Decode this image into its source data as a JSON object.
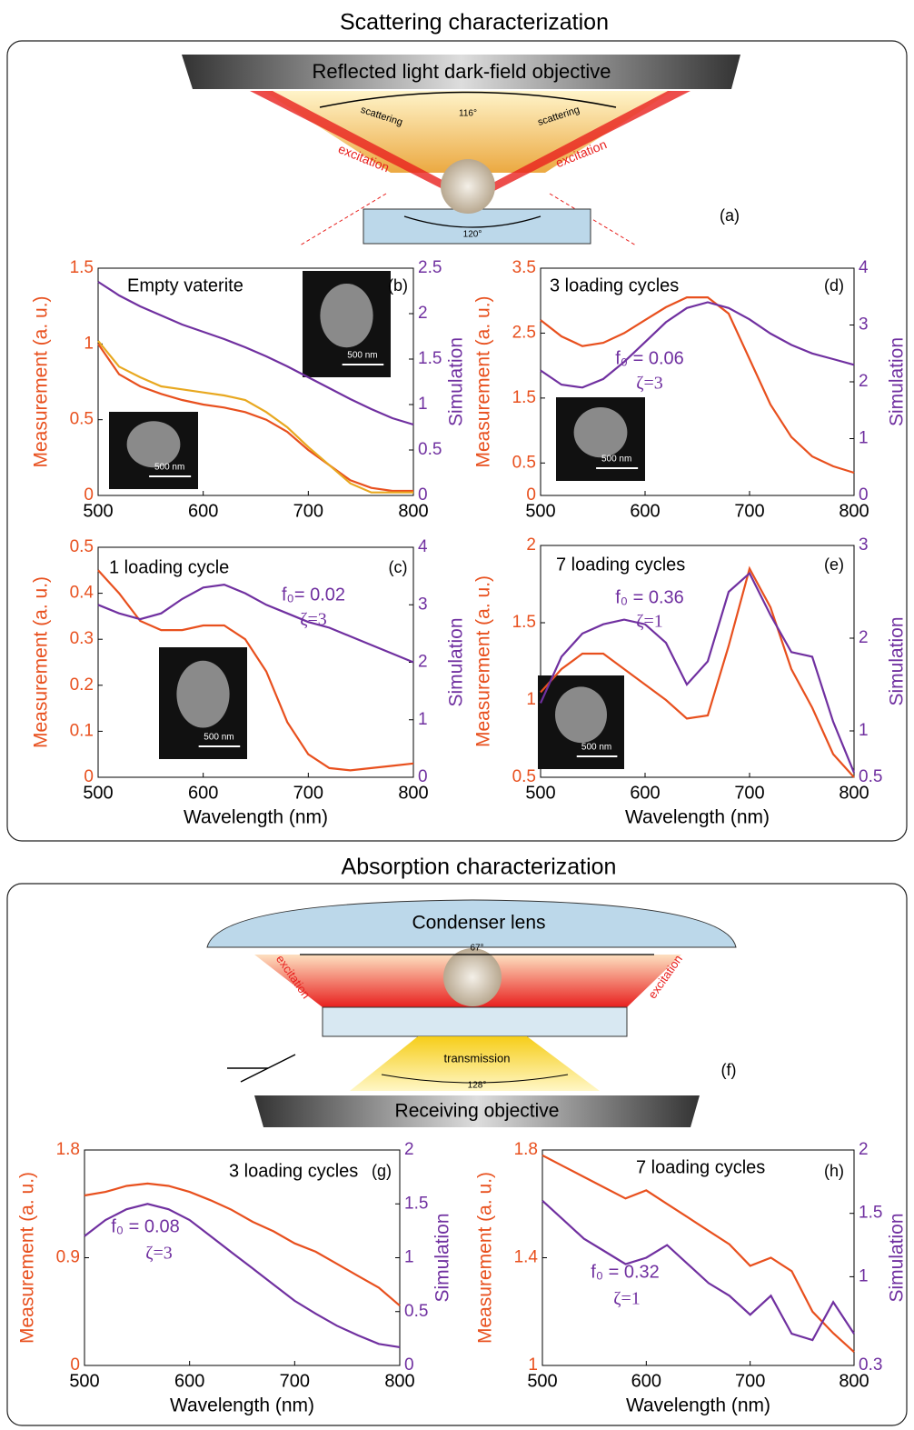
{
  "diagrams": {
    "scattering": {
      "title": "Scattering characterization",
      "objective": "Reflected light dark-field objective",
      "scatter_left": "scattering",
      "scatter_right": "scattering",
      "angle_top": "116°",
      "excitation_left": "excitation",
      "excitation_right": "excitation",
      "angle_bottom": "120°",
      "label": "(a)"
    },
    "absorption": {
      "title": "Absorption characterization",
      "lens": "Condenser lens",
      "angle_top": "67°",
      "excitation_left": "excitation",
      "excitation_right": "excitation",
      "transmission": "transmission",
      "angle_bottom": "128°",
      "label": "(f)",
      "objective": "Receiving objective"
    }
  },
  "chart_data": [
    {
      "type": "line",
      "label": "(b)",
      "title": "Empty vaterite",
      "ylabel": "Measurement (a. u.)",
      "y2label": "Simulation",
      "x": [
        500,
        520,
        540,
        560,
        580,
        600,
        620,
        640,
        660,
        680,
        700,
        720,
        740,
        760,
        780,
        800
      ],
      "xlim": [
        500,
        800
      ],
      "xticks": [
        500,
        600,
        700,
        800
      ],
      "ylim": [
        0,
        1.5
      ],
      "yticks": [
        0,
        0.5,
        1,
        1.5
      ],
      "y2lim": [
        0,
        2.5
      ],
      "y2ticks": [
        0,
        0.5,
        1,
        1.5,
        2,
        2.5
      ],
      "series": [
        {
          "color": "#e8501e",
          "values": [
            1.0,
            0.8,
            0.72,
            0.67,
            0.63,
            0.6,
            0.58,
            0.55,
            0.5,
            0.42,
            0.3,
            0.2,
            0.1,
            0.05,
            0.03,
            0.03
          ]
        },
        {
          "color": "#e8a820",
          "values": [
            1.02,
            0.85,
            0.78,
            0.72,
            0.7,
            0.68,
            0.66,
            0.63,
            0.55,
            0.45,
            0.32,
            0.2,
            0.08,
            0.02,
            0.02,
            0.02
          ]
        },
        {
          "color": "#7030a0",
          "axis": "y2",
          "values": [
            2.35,
            2.2,
            2.08,
            1.98,
            1.88,
            1.8,
            1.72,
            1.63,
            1.53,
            1.42,
            1.3,
            1.18,
            1.06,
            0.95,
            0.85,
            0.78
          ]
        }
      ],
      "annotations": [],
      "insets": [
        "500 nm",
        "500 nm"
      ]
    },
    {
      "type": "line",
      "label": "(c)",
      "title": "1 loading cycle",
      "ylabel": "Measurement (a. u.)",
      "y2label": "Simulation",
      "xlabel": "Wavelength (nm)",
      "x": [
        500,
        520,
        540,
        560,
        580,
        600,
        620,
        640,
        660,
        680,
        700,
        720,
        740,
        760,
        780,
        800
      ],
      "xlim": [
        500,
        800
      ],
      "xticks": [
        500,
        600,
        700,
        800
      ],
      "ylim": [
        0,
        0.5
      ],
      "yticks": [
        0,
        0.1,
        0.2,
        0.3,
        0.4,
        0.5
      ],
      "y2lim": [
        0,
        4
      ],
      "y2ticks": [
        0,
        1,
        2,
        3,
        4
      ],
      "series": [
        {
          "color": "#e8501e",
          "values": [
            0.45,
            0.4,
            0.34,
            0.32,
            0.32,
            0.33,
            0.33,
            0.3,
            0.23,
            0.12,
            0.05,
            0.02,
            0.015,
            0.02,
            0.025,
            0.03
          ]
        },
        {
          "color": "#7030a0",
          "axis": "y2",
          "values": [
            3.0,
            2.85,
            2.75,
            2.85,
            3.1,
            3.3,
            3.35,
            3.2,
            3.0,
            2.85,
            2.7,
            2.6,
            2.45,
            2.3,
            2.15,
            2.0
          ]
        }
      ],
      "annotations": [
        "f₀= 0.02",
        "ζ=3"
      ],
      "insets": [
        "500 nm"
      ]
    },
    {
      "type": "line",
      "label": "(d)",
      "title": "3 loading cycles",
      "ylabel": "Measurement (a. u.)",
      "y2label": "Simulation",
      "x": [
        500,
        520,
        540,
        560,
        580,
        600,
        620,
        640,
        660,
        680,
        700,
        720,
        740,
        760,
        780,
        800
      ],
      "xlim": [
        500,
        800
      ],
      "xticks": [
        500,
        600,
        700,
        800
      ],
      "ylim": [
        0,
        3.5
      ],
      "yticks": [
        0,
        0.5,
        1.5,
        2.5,
        3.5
      ],
      "y2lim": [
        0,
        4
      ],
      "y2ticks": [
        0,
        1,
        2,
        3,
        4
      ],
      "series": [
        {
          "color": "#e8501e",
          "values": [
            2.7,
            2.45,
            2.3,
            2.35,
            2.5,
            2.7,
            2.9,
            3.05,
            3.05,
            2.8,
            2.1,
            1.4,
            0.9,
            0.6,
            0.45,
            0.35
          ]
        },
        {
          "color": "#7030a0",
          "axis": "y2",
          "values": [
            2.2,
            1.95,
            1.9,
            2.05,
            2.35,
            2.7,
            3.05,
            3.3,
            3.4,
            3.3,
            3.1,
            2.85,
            2.65,
            2.5,
            2.4,
            2.3
          ]
        }
      ],
      "annotations": [
        "f₀ = 0.06",
        "ζ=3"
      ],
      "insets": [
        "500 nm"
      ]
    },
    {
      "type": "line",
      "label": "(e)",
      "title": "7 loading cycles",
      "ylabel": "Measurement (a. u.)",
      "y2label": "Simulation",
      "xlabel": "Wavelength (nm)",
      "x": [
        500,
        520,
        540,
        560,
        580,
        600,
        620,
        640,
        660,
        680,
        700,
        720,
        740,
        760,
        780,
        800
      ],
      "xlim": [
        500,
        800
      ],
      "xticks": [
        500,
        600,
        700,
        800
      ],
      "ylim": [
        0.5,
        2
      ],
      "yticks": [
        0.5,
        1,
        1.5,
        2
      ],
      "y2lim": [
        0.5,
        3
      ],
      "y2ticks": [
        0.5,
        1,
        2,
        3
      ],
      "series": [
        {
          "color": "#e8501e",
          "values": [
            1.05,
            1.2,
            1.3,
            1.3,
            1.2,
            1.1,
            1.0,
            0.88,
            0.9,
            1.35,
            1.85,
            1.6,
            1.2,
            0.95,
            0.65,
            0.5
          ]
        },
        {
          "color": "#7030a0",
          "axis": "y2",
          "values": [
            1.3,
            1.8,
            2.05,
            2.15,
            2.2,
            2.15,
            1.95,
            1.5,
            1.75,
            2.5,
            2.7,
            2.25,
            1.85,
            1.8,
            1.1,
            0.55
          ]
        }
      ],
      "annotations": [
        "f₀ = 0.36",
        "ζ=1"
      ],
      "insets": [
        "500 nm"
      ]
    },
    {
      "type": "line",
      "label": "(g)",
      "title": "3 loading cycles",
      "ylabel": "Measurement (a. u.)",
      "y2label": "Simulation",
      "xlabel": "Wavelength (nm)",
      "x": [
        500,
        520,
        540,
        560,
        580,
        600,
        620,
        640,
        660,
        680,
        700,
        720,
        740,
        760,
        780,
        800
      ],
      "xlim": [
        500,
        800
      ],
      "xticks": [
        500,
        600,
        700,
        800
      ],
      "ylim": [
        0,
        1.8
      ],
      "yticks": [
        0,
        0.9,
        1.8
      ],
      "y2lim": [
        0,
        2
      ],
      "y2ticks": [
        0,
        0.5,
        1,
        1.5,
        2
      ],
      "series": [
        {
          "color": "#e8501e",
          "values": [
            1.42,
            1.45,
            1.5,
            1.52,
            1.5,
            1.45,
            1.38,
            1.3,
            1.2,
            1.12,
            1.02,
            0.95,
            0.85,
            0.75,
            0.65,
            0.5
          ]
        },
        {
          "color": "#7030a0",
          "axis": "y2",
          "values": [
            1.2,
            1.35,
            1.45,
            1.5,
            1.45,
            1.35,
            1.2,
            1.05,
            0.9,
            0.75,
            0.6,
            0.48,
            0.37,
            0.28,
            0.2,
            0.17
          ]
        }
      ],
      "annotations": [
        "f₀ = 0.08",
        "ζ=3"
      ],
      "insets": []
    },
    {
      "type": "line",
      "label": "(h)",
      "title": "7 loading cycles",
      "ylabel": "Measurement (a. u.)",
      "y2label": "Simulation",
      "xlabel": "Wavelength (nm)",
      "x": [
        500,
        520,
        540,
        560,
        580,
        600,
        620,
        640,
        660,
        680,
        700,
        720,
        740,
        760,
        780,
        800
      ],
      "xlim": [
        500,
        800
      ],
      "xticks": [
        500,
        600,
        700,
        800
      ],
      "ylim": [
        1,
        1.8
      ],
      "yticks": [
        1,
        1.4,
        1.8
      ],
      "y2lim": [
        0.3,
        2
      ],
      "y2ticks": [
        0.3,
        1,
        1.5,
        2
      ],
      "series": [
        {
          "color": "#e8501e",
          "values": [
            1.78,
            1.74,
            1.7,
            1.66,
            1.62,
            1.65,
            1.6,
            1.55,
            1.5,
            1.45,
            1.37,
            1.4,
            1.35,
            1.2,
            1.12,
            1.05
          ]
        },
        {
          "color": "#7030a0",
          "axis": "y2",
          "values": [
            1.6,
            1.45,
            1.3,
            1.2,
            1.1,
            1.15,
            1.25,
            1.1,
            0.95,
            0.85,
            0.7,
            0.85,
            0.55,
            0.5,
            0.8,
            0.55
          ]
        }
      ],
      "annotations": [
        "f₀ = 0.32",
        "ζ=1"
      ],
      "insets": []
    }
  ]
}
